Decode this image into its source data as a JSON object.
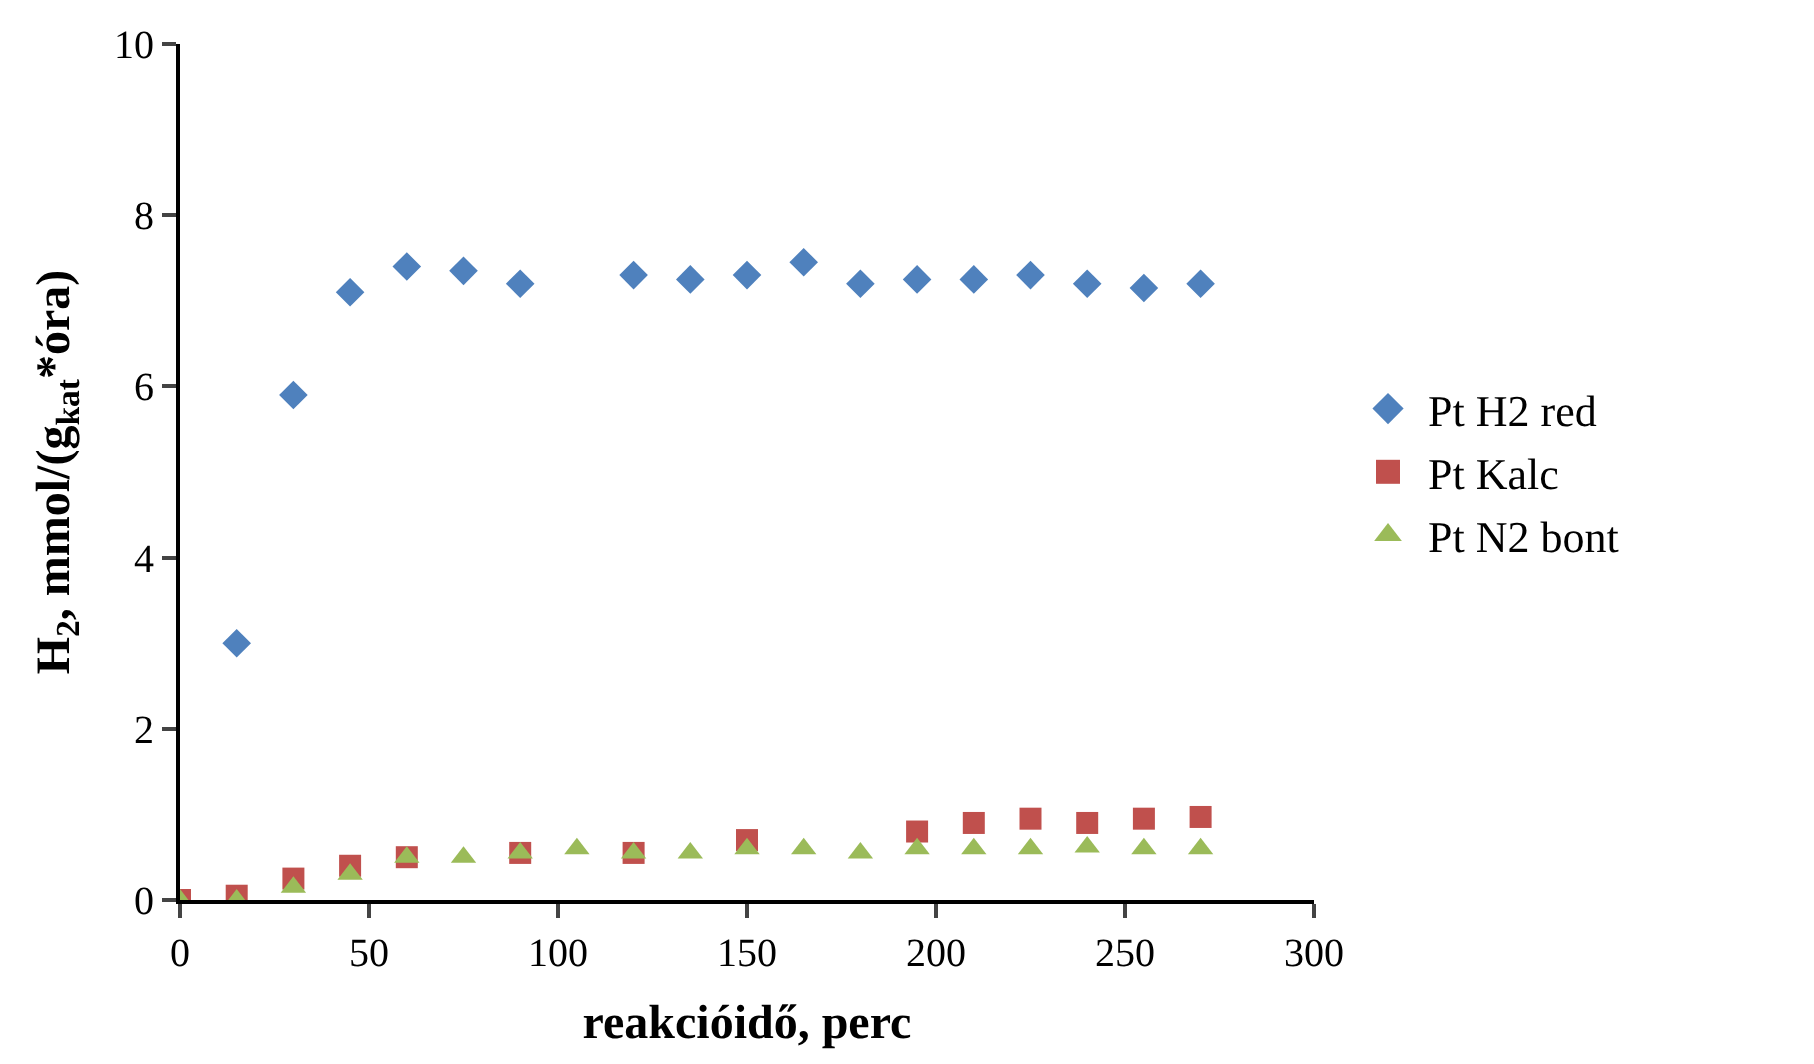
{
  "chart_data": {
    "type": "scatter",
    "xlabel": "reakcióidő, perc",
    "ylabel": "H$_{2}$, mmol/(g$_{kat}$*óra)",
    "xlim": [
      0,
      300
    ],
    "xticks": [
      0,
      50,
      100,
      150,
      200,
      250,
      300
    ],
    "ylim": [
      0,
      10
    ],
    "yticks": [
      0,
      2,
      4,
      6,
      8,
      10
    ],
    "legend": "right",
    "series": [
      {
        "name": "Pt H2 red",
        "color": "#4f81bd",
        "marker": "diamond",
        "x": [
          15,
          30,
          45,
          60,
          75,
          90,
          120,
          135,
          150,
          165,
          180,
          195,
          210,
          225,
          240,
          255,
          270
        ],
        "values": [
          3.0,
          5.9,
          7.1,
          7.4,
          7.35,
          7.2,
          7.3,
          7.25,
          7.3,
          7.45,
          7.2,
          7.25,
          7.25,
          7.3,
          7.2,
          7.15,
          7.2
        ]
      },
      {
        "name": "Pt Kalc",
        "color": "#c0504d",
        "marker": "square",
        "x": [
          0,
          15,
          30,
          45,
          60,
          90,
          120,
          150,
          195,
          210,
          225,
          240,
          255,
          270
        ],
        "values": [
          0,
          0.05,
          0.25,
          0.4,
          0.5,
          0.55,
          0.55,
          0.7,
          0.8,
          0.9,
          0.95,
          0.9,
          0.95,
          0.97
        ]
      },
      {
        "name": "Pt N2 bont",
        "color": "#9bbb59",
        "marker": "triangle",
        "x": [
          0,
          15,
          30,
          45,
          60,
          75,
          90,
          105,
          120,
          135,
          150,
          165,
          180,
          195,
          210,
          225,
          240,
          255,
          270
        ],
        "values": [
          0,
          0,
          0.15,
          0.3,
          0.5,
          0.5,
          0.55,
          0.6,
          0.55,
          0.55,
          0.6,
          0.6,
          0.55,
          0.6,
          0.6,
          0.6,
          0.62,
          0.6,
          0.6
        ]
      }
    ]
  }
}
